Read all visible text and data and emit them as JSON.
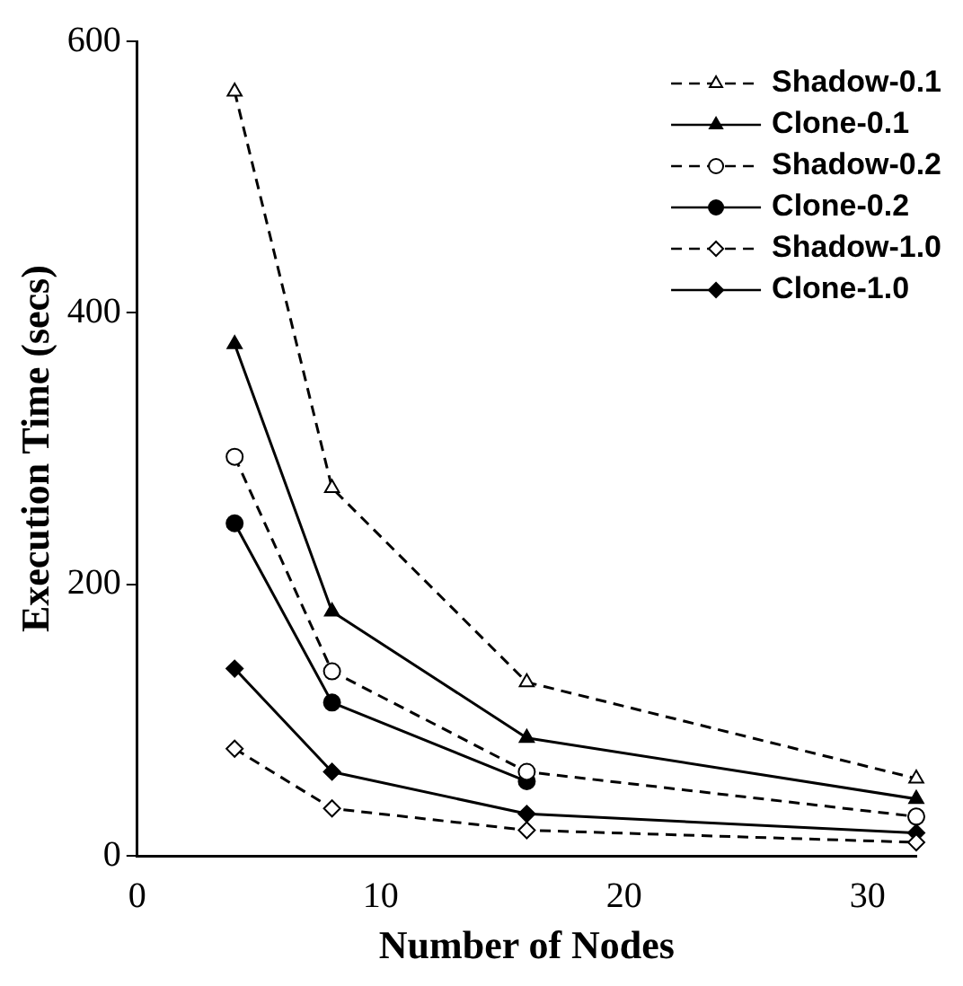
{
  "chart_data": {
    "type": "line",
    "xlabel": "Number of Nodes",
    "ylabel": "Execution Time (secs)",
    "x": [
      4,
      8,
      16,
      32
    ],
    "xlim": [
      0,
      32
    ],
    "xticks": [
      0,
      10,
      20,
      30
    ],
    "ylim": [
      0,
      600
    ],
    "yticks": [
      0,
      200,
      400,
      600
    ],
    "grid": false,
    "legend": "top right",
    "series": [
      {
        "name": "Shadow-0.1",
        "color": "#000000",
        "values": [
          563,
          271,
          128,
          57
        ],
        "marker": "triangle",
        "line_style": "dashed"
      },
      {
        "name": "Clone-0.1",
        "color": "#000000",
        "values": [
          377,
          180,
          87,
          42
        ],
        "marker": "triangle",
        "line_style": "solid"
      },
      {
        "name": "Shadow-0.2",
        "color": "#000000",
        "values": [
          294,
          136,
          62,
          29
        ],
        "marker": "circle",
        "line_style": "dashed"
      },
      {
        "name": "Clone-0.2",
        "color": "#000000",
        "values": [
          245,
          113,
          55,
          null
        ],
        "marker": "circle",
        "line_style": "solid"
      },
      {
        "name": "Shadow-1.0",
        "color": "#000000",
        "values": [
          79,
          35,
          19,
          10
        ],
        "marker": "diamond",
        "line_style": "dashed"
      },
      {
        "name": "Clone-1.0",
        "color": "#000000",
        "values": [
          138,
          62,
          31,
          17
        ],
        "marker": "diamond",
        "line_style": "solid"
      }
    ]
  }
}
